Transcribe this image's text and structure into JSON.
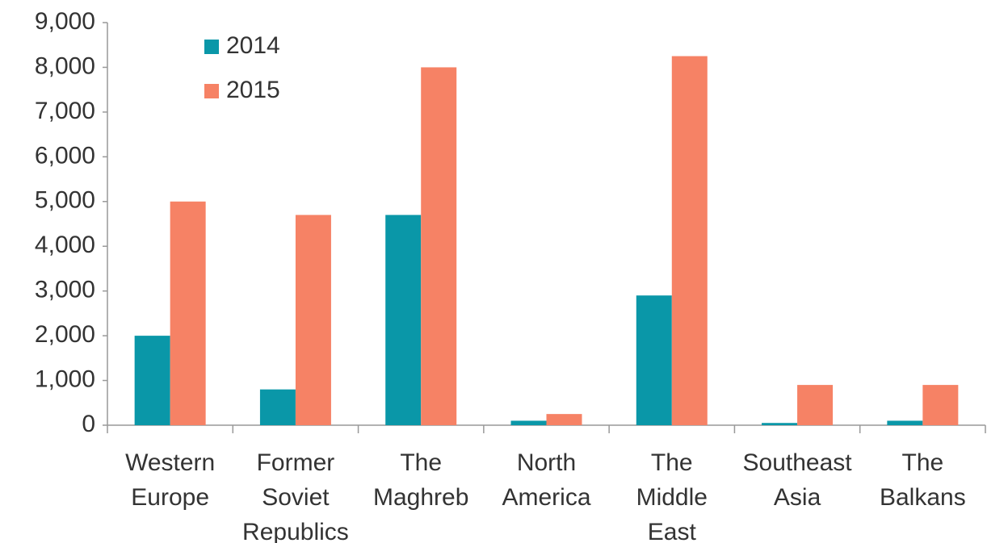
{
  "chart_data": {
    "type": "bar",
    "categories": [
      "Western Europe",
      "Former Soviet Republics",
      "The Maghreb",
      "North America",
      "The Middle East",
      "Southeast Asia",
      "The Balkans"
    ],
    "series": [
      {
        "name": "2014",
        "color": "#0a97a8",
        "values": [
          2000,
          800,
          4700,
          100,
          2900,
          50,
          100
        ]
      },
      {
        "name": "2015",
        "color": "#f68265",
        "values": [
          5000,
          4700,
          8000,
          250,
          8250,
          900,
          900
        ]
      }
    ],
    "ylim": [
      0,
      9000
    ],
    "yticks": [
      0,
      {
        "value": 1000,
        "label": "1,000"
      },
      {
        "value": 2000,
        "label": "2,000"
      },
      {
        "value": 3000,
        "label": "3,000"
      },
      {
        "value": 4000,
        "label": "4,000"
      },
      {
        "value": 5000,
        "label": "5,000"
      },
      {
        "value": 6000,
        "label": "6,000"
      },
      {
        "value": 7000,
        "label": "7,000"
      },
      {
        "value": 8000,
        "label": "8,000"
      },
      {
        "value": 9000,
        "label": "9,000"
      }
    ],
    "legend": "top-left"
  }
}
